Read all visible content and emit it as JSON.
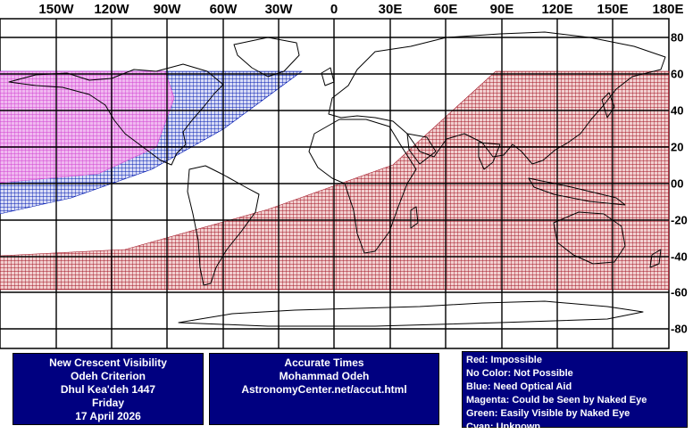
{
  "axes": {
    "longitude_labels": [
      "150W",
      "120W",
      "90W",
      "60W",
      "30W",
      "0",
      "30E",
      "60E",
      "90E",
      "120E",
      "150E",
      "180E"
    ],
    "latitude_labels": [
      "80",
      "60",
      "40",
      "20",
      "00",
      "-20",
      "-40",
      "-60",
      "-80"
    ]
  },
  "colors": {
    "impossible": "#a01020",
    "optical_aid": "#0018b0",
    "naked_eye": "#d040d0",
    "box_background": "#000080"
  },
  "visibility_zones": [
    {
      "category": "Red",
      "shape": "lower-right band"
    },
    {
      "category": "Blue",
      "shape": "upper-left band"
    },
    {
      "category": "Magenta",
      "shape": "upper-left corner"
    }
  ],
  "info": {
    "title_box": {
      "line1": "New Crescent Visibility",
      "line2": "Odeh Criterion",
      "line3": "Dhul Kea'deh 1447",
      "line4": "Friday",
      "line5": "17 April 2026"
    },
    "credits_box": {
      "line1": "Accurate Times",
      "line2": "Mohammad Odeh",
      "line3": "AstronomyCenter.net/accut.html"
    },
    "legend": [
      "Red: Impossible",
      "No Color: Not Possible",
      "Blue: Need Optical Aid",
      "Magenta: Could be Seen by Naked Eye",
      "Green: Easily Visible by Naked Eye",
      "Cyan: Unknown"
    ]
  }
}
